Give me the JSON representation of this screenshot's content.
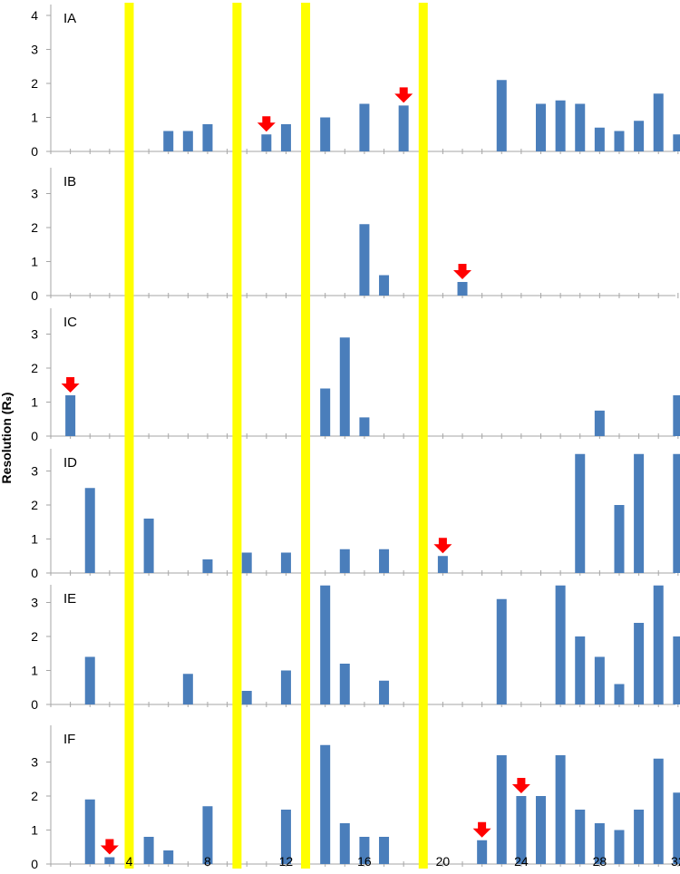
{
  "chart_data": {
    "type": "bar",
    "ylabel": "Resolution (Rₛ)",
    "x_ticks": [
      "4",
      "8",
      "12",
      "16",
      "20",
      "24",
      "28",
      "32"
    ],
    "xlim": [
      0,
      32
    ],
    "highlight_positions": [
      4,
      9.5,
      13,
      19
    ],
    "colors": {
      "bar": "#4a7ebb",
      "highlight": "#ffff00",
      "marker": "#ff0000",
      "axis": "#a6a6a6"
    },
    "panels": [
      {
        "label": "IA",
        "ylim": [
          0,
          4
        ],
        "y_ticks": [
          "0",
          "1",
          "2",
          "3",
          "4"
        ],
        "bars": [
          {
            "x": 6,
            "y": 0.6
          },
          {
            "x": 7,
            "y": 0.6
          },
          {
            "x": 8,
            "y": 0.8
          },
          {
            "x": 11,
            "y": 0.5
          },
          {
            "x": 12,
            "y": 0.8
          },
          {
            "x": 14,
            "y": 1.0
          },
          {
            "x": 16,
            "y": 1.4
          },
          {
            "x": 18,
            "y": 1.35
          },
          {
            "x": 23,
            "y": 2.1
          },
          {
            "x": 25,
            "y": 1.4
          },
          {
            "x": 26,
            "y": 1.5
          },
          {
            "x": 27,
            "y": 1.4
          },
          {
            "x": 28,
            "y": 0.7
          },
          {
            "x": 29,
            "y": 0.6
          },
          {
            "x": 30,
            "y": 0.9
          },
          {
            "x": 31,
            "y": 1.7
          },
          {
            "x": 32,
            "y": 0.5
          }
        ],
        "markers": [
          11,
          18
        ]
      },
      {
        "label": "IB",
        "ylim": [
          0,
          3.5
        ],
        "y_ticks": [
          "0",
          "1",
          "2",
          "3"
        ],
        "bars": [
          {
            "x": 16,
            "y": 2.1
          },
          {
            "x": 17,
            "y": 0.6
          },
          {
            "x": 21,
            "y": 0.4
          }
        ],
        "markers": [
          21
        ]
      },
      {
        "label": "IC",
        "ylim": [
          0,
          3.5
        ],
        "y_ticks": [
          "0",
          "1",
          "2",
          "3"
        ],
        "bars": [
          {
            "x": 1,
            "y": 1.2
          },
          {
            "x": 14,
            "y": 1.4
          },
          {
            "x": 15,
            "y": 2.9
          },
          {
            "x": 16,
            "y": 0.55
          },
          {
            "x": 28,
            "y": 0.75
          },
          {
            "x": 32,
            "y": 1.2
          }
        ],
        "markers": [
          1
        ]
      },
      {
        "label": "ID",
        "ylim": [
          0,
          3.5
        ],
        "y_ticks": [
          "0",
          "1",
          "2",
          "3"
        ],
        "bars": [
          {
            "x": 2,
            "y": 2.5
          },
          {
            "x": 5,
            "y": 1.6
          },
          {
            "x": 8,
            "y": 0.4
          },
          {
            "x": 10,
            "y": 0.6
          },
          {
            "x": 12,
            "y": 0.6
          },
          {
            "x": 15,
            "y": 0.7
          },
          {
            "x": 17,
            "y": 0.7
          },
          {
            "x": 20,
            "y": 0.5
          },
          {
            "x": 27,
            "y": 3.5
          },
          {
            "x": 29,
            "y": 2.0
          },
          {
            "x": 30,
            "y": 3.5
          },
          {
            "x": 32,
            "y": 3.5
          }
        ],
        "markers": [
          20
        ]
      },
      {
        "label": "IE",
        "ylim": [
          0,
          3.5
        ],
        "y_ticks": [
          "0",
          "1",
          "2",
          "3"
        ],
        "bars": [
          {
            "x": 2,
            "y": 1.4
          },
          {
            "x": 7,
            "y": 0.9
          },
          {
            "x": 10,
            "y": 0.4
          },
          {
            "x": 12,
            "y": 1.0
          },
          {
            "x": 14,
            "y": 3.5
          },
          {
            "x": 15,
            "y": 1.2
          },
          {
            "x": 17,
            "y": 0.7
          },
          {
            "x": 23,
            "y": 3.1
          },
          {
            "x": 26,
            "y": 3.5
          },
          {
            "x": 27,
            "y": 2.0
          },
          {
            "x": 28,
            "y": 1.4
          },
          {
            "x": 29,
            "y": 0.6
          },
          {
            "x": 30,
            "y": 2.4
          },
          {
            "x": 31,
            "y": 3.5
          },
          {
            "x": 32,
            "y": 2.0
          }
        ],
        "markers": []
      },
      {
        "label": "IF",
        "ylim": [
          0,
          3.5
        ],
        "y_ticks": [
          "0",
          "1",
          "2",
          "3"
        ],
        "bars": [
          {
            "x": 2,
            "y": 1.9
          },
          {
            "x": 3,
            "y": 0.2
          },
          {
            "x": 5,
            "y": 0.8
          },
          {
            "x": 6,
            "y": 0.4
          },
          {
            "x": 8,
            "y": 1.7
          },
          {
            "x": 12,
            "y": 1.6
          },
          {
            "x": 14,
            "y": 3.5
          },
          {
            "x": 15,
            "y": 1.2
          },
          {
            "x": 16,
            "y": 0.8
          },
          {
            "x": 17,
            "y": 0.8
          },
          {
            "x": 22,
            "y": 0.7
          },
          {
            "x": 23,
            "y": 3.2
          },
          {
            "x": 24,
            "y": 2.0
          },
          {
            "x": 25,
            "y": 2.0
          },
          {
            "x": 26,
            "y": 3.2
          },
          {
            "x": 27,
            "y": 1.6
          },
          {
            "x": 28,
            "y": 1.2
          },
          {
            "x": 29,
            "y": 1.0
          },
          {
            "x": 30,
            "y": 1.6
          },
          {
            "x": 31,
            "y": 3.1
          },
          {
            "x": 32,
            "y": 2.1
          }
        ],
        "markers": [
          3,
          24,
          22
        ]
      }
    ]
  }
}
